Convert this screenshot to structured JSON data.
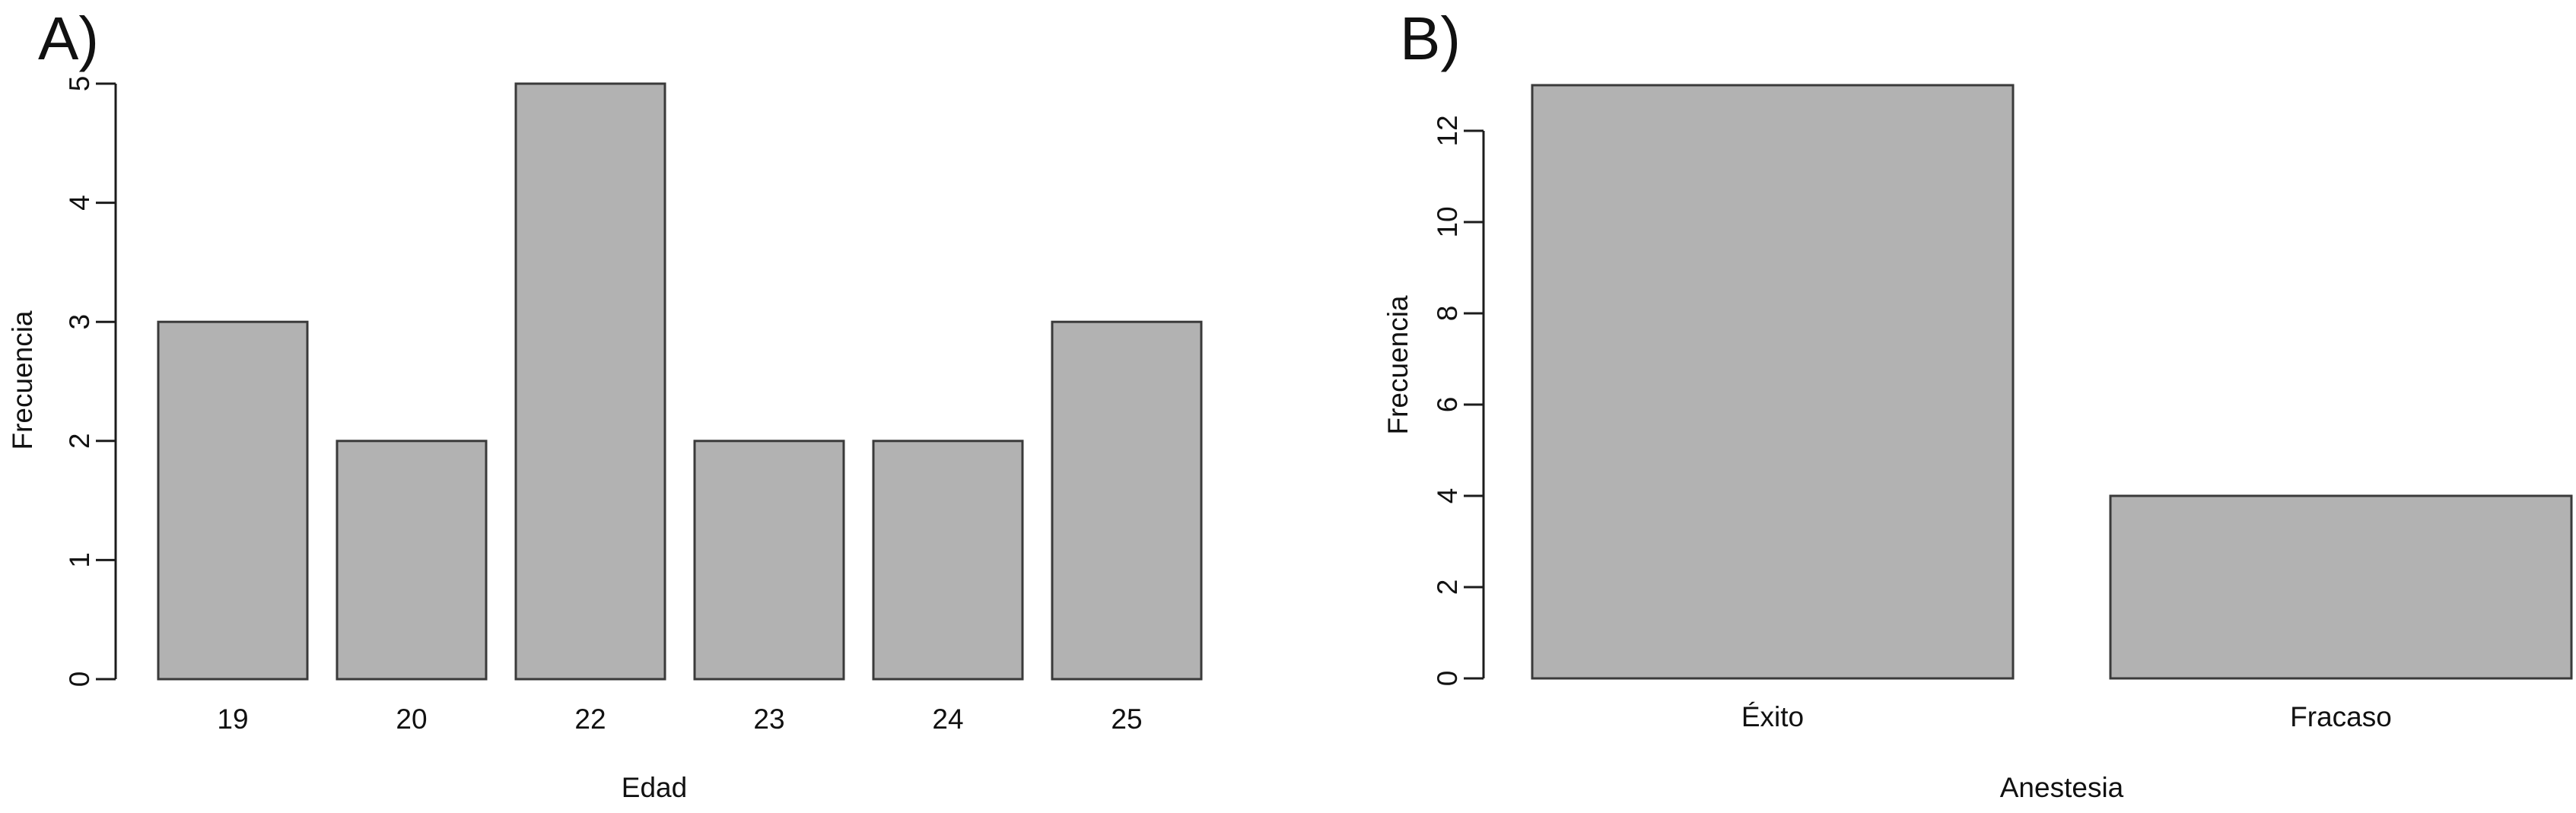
{
  "chart_data": [
    {
      "type": "bar",
      "title": "A)",
      "categories": [
        "19",
        "20",
        "22",
        "23",
        "24",
        "25"
      ],
      "values": [
        3,
        2,
        5,
        2,
        2,
        3
      ],
      "xlabel": "Edad",
      "ylabel": "Frecuencia",
      "ylim": [
        0,
        5
      ],
      "yticks": [
        0,
        1,
        2,
        3,
        4,
        5
      ],
      "grid": false,
      "legend": "none"
    },
    {
      "type": "bar",
      "title": "B)",
      "categories": [
        "Éxito",
        "Fracaso"
      ],
      "values": [
        13,
        4
      ],
      "xlabel": "Anestesia",
      "ylabel": "Frecuencia",
      "ylim": [
        0,
        13
      ],
      "yticks": [
        0,
        2,
        4,
        6,
        8,
        10,
        12
      ],
      "grid": false,
      "legend": "none"
    }
  ],
  "colors": {
    "background": "#ffffff",
    "bar_fill": "#b2b2b2",
    "bar_border": "#3a3a3a",
    "axis": "#1c1c1c",
    "text": "#111111"
  }
}
